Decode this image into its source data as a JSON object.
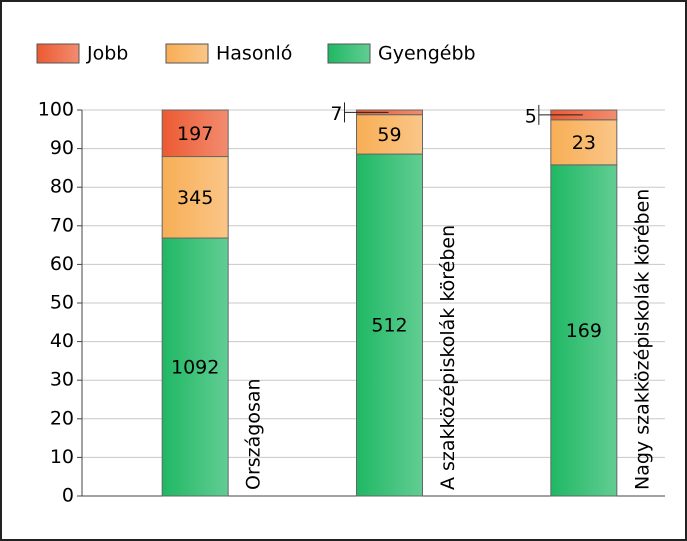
{
  "chart_data": {
    "type": "bar",
    "stacking": "percent",
    "categories": [
      "Országosan",
      "A szakközépiskolák körében",
      "Nagy szakközépiskolák körében"
    ],
    "series": [
      {
        "name": "Gyengébb",
        "color": "#1fb864",
        "values": [
          1092,
          512,
          169
        ]
      },
      {
        "name": "Hasonló",
        "color": "#f8ae55",
        "values": [
          345,
          59,
          23
        ]
      },
      {
        "name": "Jobb",
        "color": "#ec5a32",
        "values": [
          197,
          7,
          5
        ]
      }
    ],
    "legend_order": [
      "Jobb",
      "Hasonló",
      "Gyengébb"
    ],
    "ylim": [
      0,
      100
    ],
    "yticks": [
      0,
      10,
      20,
      30,
      40,
      50,
      60,
      70,
      80,
      90,
      100
    ],
    "grid": true
  }
}
